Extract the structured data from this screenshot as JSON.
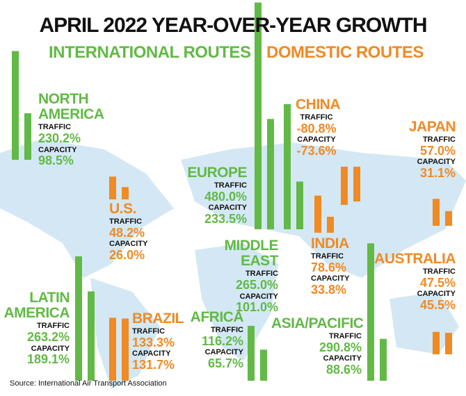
{
  "title": "APRIL 2022 YEAR-OVER-YEAR GROWTH",
  "subtitle": {
    "international": "INTERNATIONAL ROUTES",
    "domestic": "DOMESTIC ROUTES"
  },
  "metric_labels": {
    "traffic": "TRAFFIC",
    "capacity": "CAPACITY"
  },
  "colors": {
    "international": "#62b946",
    "domestic": "#f08a24"
  },
  "regions": [
    {
      "name": "NORTH AMERICA",
      "group": "international",
      "traffic": 230.2,
      "traffic_label": "230.2%",
      "capacity": 98.5,
      "capacity_label": "98.5%"
    },
    {
      "name": "U.S.",
      "group": "domestic",
      "traffic": 48.2,
      "traffic_label": "48.2%",
      "capacity": 26.0,
      "capacity_label": "26.0%"
    },
    {
      "name": "LATIN AMERICA",
      "group": "international",
      "traffic": 263.2,
      "traffic_label": "263.2%",
      "capacity": 189.1,
      "capacity_label": "189.1%"
    },
    {
      "name": "BRAZIL",
      "group": "domestic",
      "traffic": 133.3,
      "traffic_label": "133.3%",
      "capacity": 131.7,
      "capacity_label": "131.7%"
    },
    {
      "name": "EUROPE",
      "group": "international",
      "traffic": 480.0,
      "traffic_label": "480.0%",
      "capacity": 233.5,
      "capacity_label": "233.5%"
    },
    {
      "name": "MIDDLE EAST",
      "group": "international",
      "traffic": 265.0,
      "traffic_label": "265.0%",
      "capacity": 101.0,
      "capacity_label": "101.0%"
    },
    {
      "name": "AFRICA",
      "group": "international",
      "traffic": 116.2,
      "traffic_label": "116.2%",
      "capacity": 65.7,
      "capacity_label": "65.7%"
    },
    {
      "name": "CHINA",
      "group": "domestic",
      "traffic": -80.8,
      "traffic_label": "-80.8%",
      "capacity": -73.6,
      "capacity_label": "-73.6%"
    },
    {
      "name": "INDIA",
      "group": "domestic",
      "traffic": 78.6,
      "traffic_label": "78.6%",
      "capacity": 33.8,
      "capacity_label": "33.8%"
    },
    {
      "name": "JAPAN",
      "group": "domestic",
      "traffic": 57.0,
      "traffic_label": "57.0%",
      "capacity": 31.1,
      "capacity_label": "31.1%"
    },
    {
      "name": "AUSTRALIA",
      "group": "domestic",
      "traffic": 47.5,
      "traffic_label": "47.5%",
      "capacity": 45.5,
      "capacity_label": "45.5%"
    },
    {
      "name": "ASIA/PACIFIC",
      "group": "international",
      "traffic": 290.8,
      "traffic_label": "290.8%",
      "capacity": 88.6,
      "capacity_label": "88.6%"
    }
  ],
  "source": "Source: International Air Transport Association"
}
